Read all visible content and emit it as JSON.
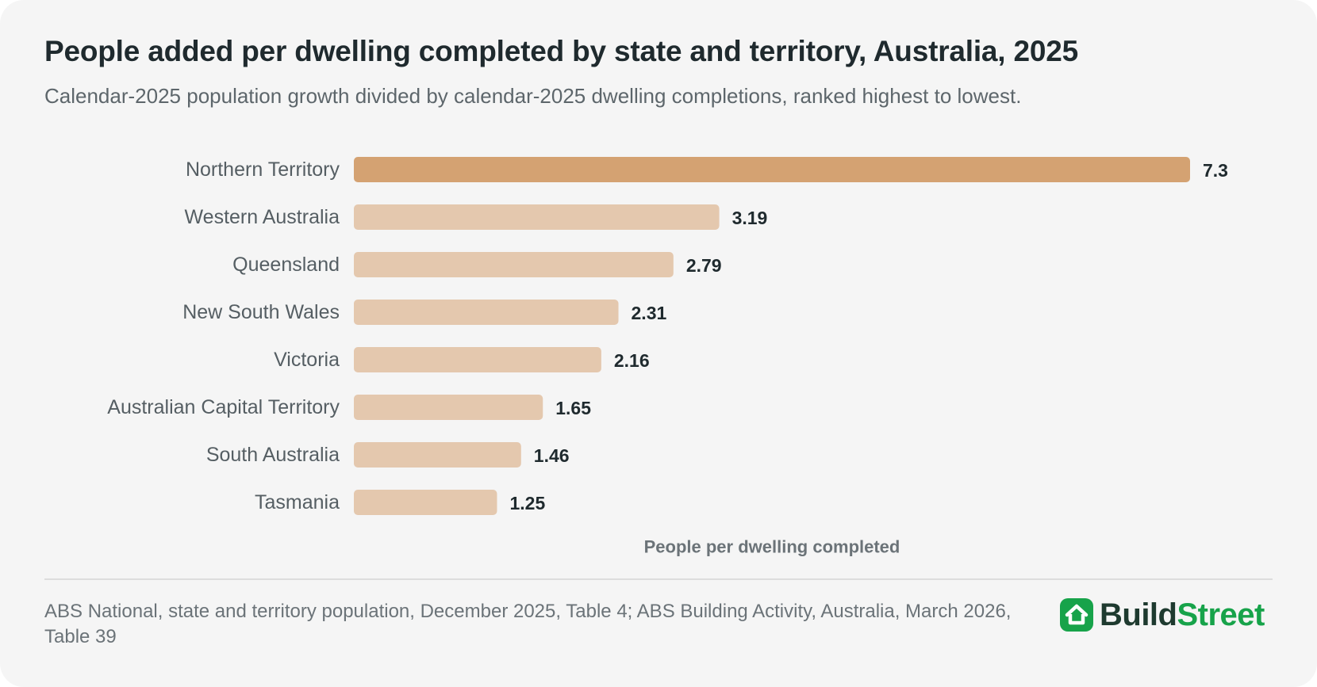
{
  "header": {
    "title": "People added per dwelling completed by state and territory, Australia, 2025",
    "subtitle": "Calendar-2025 population growth divided by calendar-2025 dwelling completions, ranked highest to lowest."
  },
  "chart_data": {
    "type": "bar",
    "orientation": "horizontal",
    "categories": [
      "Northern Territory",
      "Western Australia",
      "Queensland",
      "New South Wales",
      "Victoria",
      "Australian Capital Territory",
      "South Australia",
      "Tasmania"
    ],
    "values": [
      7.3,
      3.19,
      2.79,
      2.31,
      2.16,
      1.65,
      1.46,
      1.25
    ],
    "value_labels": [
      "7.3",
      "3.19",
      "2.79",
      "2.31",
      "2.16",
      "1.65",
      "1.46",
      "1.25"
    ],
    "xlabel": "People per dwelling completed",
    "xlim": [
      0,
      7.3
    ],
    "grid": false,
    "legend": "none",
    "colors": {
      "highlight": "#d4a272",
      "default": "#e4c8ae"
    },
    "highlight_index": 0
  },
  "footer": {
    "source": "ABS National, state and territory population, December 2025, Table 4; ABS Building Activity, Australia, March 2026, Table 39"
  },
  "logo": {
    "icon": "house-icon",
    "part1": "Build",
    "part2": "Street",
    "colors": {
      "dark": "#1e3a2f",
      "green": "#17a34a"
    }
  }
}
